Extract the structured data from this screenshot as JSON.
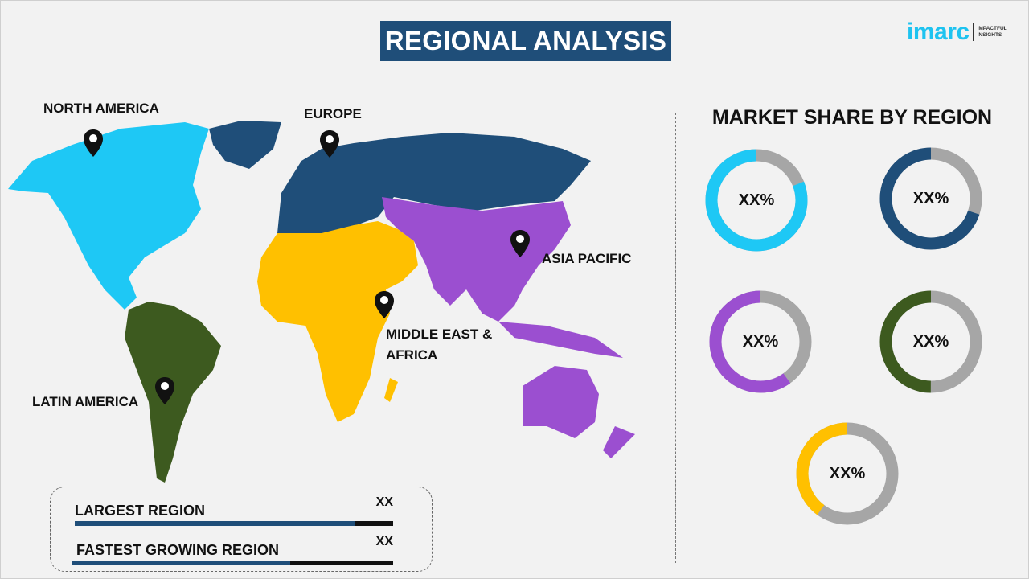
{
  "header": {
    "title": "REGIONAL ANALYSIS"
  },
  "logo": {
    "word": "imarc",
    "tagline_1": "IMPACTFUL",
    "tagline_2": "INSIGHTS"
  },
  "map": {
    "regions": [
      {
        "name": "NORTH AMERICA",
        "color": "#1ec8f5"
      },
      {
        "name": "EUROPE",
        "color": "#1f4e79"
      },
      {
        "name": "ASIA PACIFIC",
        "color": "#9b4fd0"
      },
      {
        "name": "MIDDLE EAST &",
        "name_2": "AFRICA",
        "color": "#ffc000"
      },
      {
        "name": "LATIN AMERICA",
        "color": "#3d5a1f"
      }
    ]
  },
  "market_share": {
    "title": "MARKET SHARE BY REGION",
    "donuts": [
      {
        "region": "North America",
        "label": "XX%",
        "fraction": 0.81,
        "color": "#1ec8f5"
      },
      {
        "region": "Europe",
        "label": "XX%",
        "fraction": 0.7,
        "color": "#1f4e79"
      },
      {
        "region": "Asia Pacific",
        "label": "XX%",
        "fraction": 0.6,
        "color": "#9b4fd0"
      },
      {
        "region": "Latin America",
        "label": "XX%",
        "fraction": 0.5,
        "color": "#3d5a1f"
      },
      {
        "region": "Middle East & Africa",
        "label": "XX%",
        "fraction": 0.4,
        "color": "#ffc000"
      }
    ],
    "remainder_color": "#a6a6a6"
  },
  "summary": {
    "rows": [
      {
        "label": "LARGEST REGION",
        "value": "XX",
        "fill": 0.88
      },
      {
        "label": "FASTEST GROWING REGION",
        "value": "XX",
        "fill": 0.68
      }
    ]
  }
}
